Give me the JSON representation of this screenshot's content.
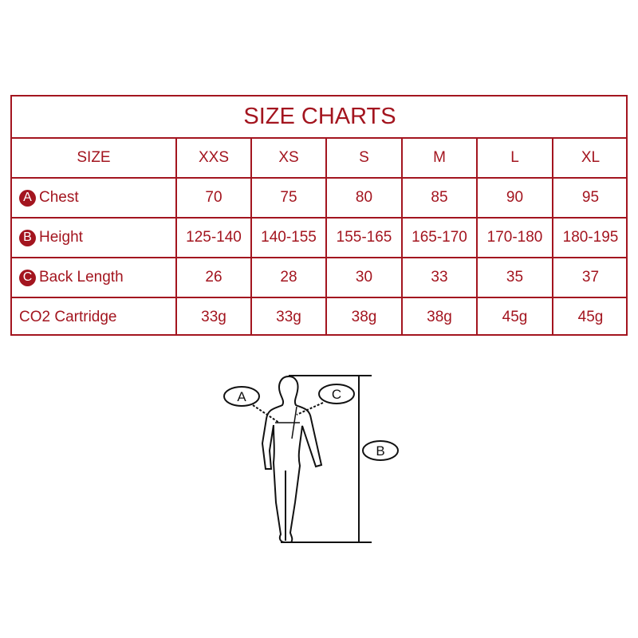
{
  "title": "SIZE CHARTS",
  "header": {
    "label": "SIZE",
    "sizes": [
      "XXS",
      "XS",
      "S",
      "M",
      "L",
      "XL"
    ]
  },
  "rows": [
    {
      "badge": "A",
      "label": "Chest",
      "values": [
        "70",
        "75",
        "80",
        "85",
        "90",
        "95"
      ]
    },
    {
      "badge": "B",
      "label": "Height",
      "values": [
        "125-140",
        "140-155",
        "155-165",
        "165-170",
        "170-180",
        "180-195"
      ]
    },
    {
      "badge": "C",
      "label": "Back Length",
      "values": [
        "26",
        "28",
        "30",
        "33",
        "35",
        "37"
      ]
    },
    {
      "badge": "",
      "label": "CO2 Cartridge",
      "values": [
        "33g",
        "33g",
        "38g",
        "38g",
        "45g",
        "45g"
      ]
    }
  ],
  "figure": {
    "label_a": "A",
    "label_b": "B",
    "label_c": "C"
  },
  "colors": {
    "accent": "#a3151f"
  }
}
